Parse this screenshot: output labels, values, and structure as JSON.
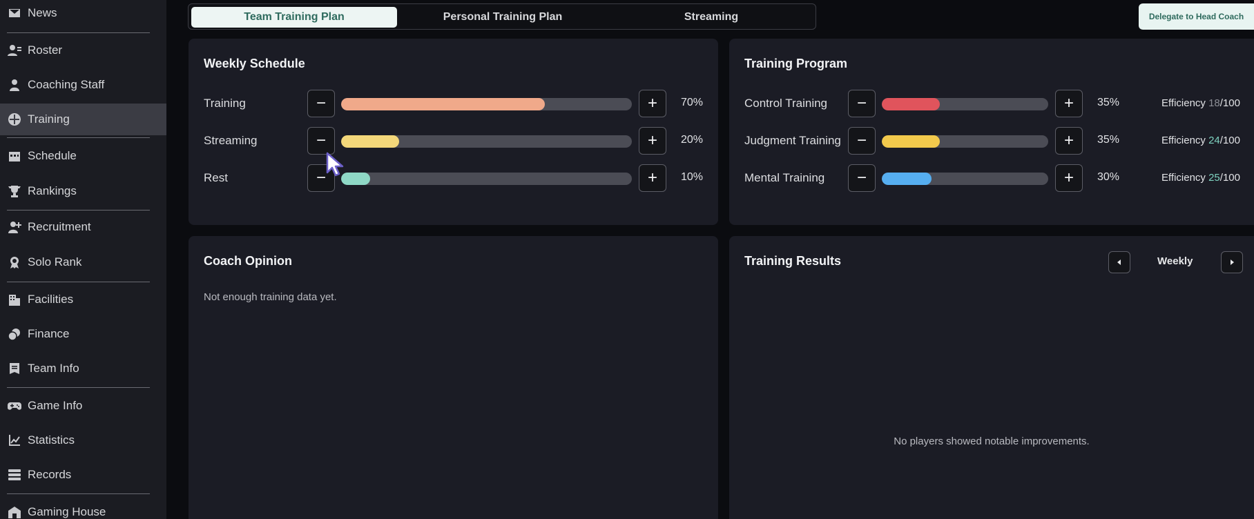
{
  "sidebar": {
    "items": [
      {
        "label": "News",
        "icon": "mail-icon"
      },
      {
        "label": "Roster",
        "icon": "roster-icon"
      },
      {
        "label": "Coaching Staff",
        "icon": "person-icon"
      },
      {
        "label": "Training",
        "icon": "training-icon",
        "active": true
      },
      {
        "label": "Schedule",
        "icon": "calendar-icon"
      },
      {
        "label": "Rankings",
        "icon": "trophy-icon"
      },
      {
        "label": "Recruitment",
        "icon": "add-person-icon"
      },
      {
        "label": "Solo Rank",
        "icon": "medal-icon"
      },
      {
        "label": "Facilities",
        "icon": "building-icon"
      },
      {
        "label": "Finance",
        "icon": "coins-icon"
      },
      {
        "label": "Team Info",
        "icon": "document-icon"
      },
      {
        "label": "Game Info",
        "icon": "gamepad-icon"
      },
      {
        "label": "Statistics",
        "icon": "chart-icon"
      },
      {
        "label": "Records",
        "icon": "records-icon"
      },
      {
        "label": "Gaming House",
        "icon": "house-icon"
      }
    ]
  },
  "tabs": [
    {
      "label": "Team Training Plan",
      "active": true
    },
    {
      "label": "Personal Training Plan"
    },
    {
      "label": "Streaming"
    }
  ],
  "delegate_label": "Delegate to Head Coach",
  "weekly_schedule": {
    "title": "Weekly Schedule",
    "rows": [
      {
        "label": "Training",
        "value": 70,
        "value_text": "70%",
        "color": "#f0a98a"
      },
      {
        "label": "Streaming",
        "value": 20,
        "value_text": "20%",
        "color": "#f3d77a"
      },
      {
        "label": "Rest",
        "value": 10,
        "value_text": "10%",
        "color": "#8fd8c6"
      }
    ]
  },
  "training_program": {
    "title": "Training Program",
    "rows": [
      {
        "label": "Control Training",
        "value": 35,
        "value_text": "35%",
        "color": "#e0545c",
        "eff_label": "Efficiency ",
        "eff_value": "18",
        "eff_max": "/100"
      },
      {
        "label": "Judgment Training",
        "value": 35,
        "value_text": "35%",
        "color": "#f2c94c",
        "eff_label": "Efficiency ",
        "eff_value": "24",
        "eff_max": "/100"
      },
      {
        "label": "Mental Training",
        "value": 30,
        "value_text": "30%",
        "color": "#56aef0",
        "eff_label": "Efficiency ",
        "eff_value": "25",
        "eff_max": "/100"
      }
    ]
  },
  "coach_opinion": {
    "title": "Coach Opinion",
    "message": "Not enough training data yet."
  },
  "training_results": {
    "title": "Training Results",
    "period": "Weekly",
    "message": "No players showed notable improvements."
  }
}
